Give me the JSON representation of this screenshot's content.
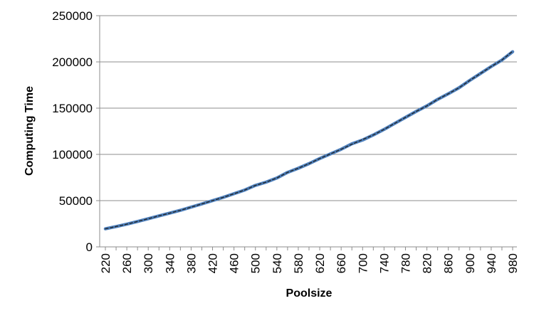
{
  "chart_data": {
    "type": "line",
    "title": "",
    "xlabel": "Poolsize",
    "ylabel": "Computing Time",
    "ylim": [
      0,
      250000
    ],
    "y_ticks": [
      0,
      50000,
      100000,
      150000,
      200000,
      250000
    ],
    "y_tick_labels": [
      "0",
      "50000",
      "100000",
      "150000",
      "200000",
      "250000"
    ],
    "x_tick_labels": [
      "220",
      "260",
      "300",
      "340",
      "380",
      "420",
      "460",
      "500",
      "540",
      "580",
      "620",
      "660",
      "700",
      "740",
      "780",
      "820",
      "860",
      "900",
      "940",
      "980"
    ],
    "grid": "horizontal",
    "legend": "none",
    "x": [
      220,
      240,
      260,
      280,
      300,
      320,
      340,
      360,
      380,
      400,
      420,
      440,
      460,
      480,
      500,
      520,
      540,
      560,
      580,
      600,
      620,
      640,
      660,
      680,
      700,
      720,
      740,
      760,
      780,
      800,
      820,
      840,
      860,
      880,
      900,
      920,
      940,
      960,
      980
    ],
    "series": [
      {
        "values": [
          19500,
          22000,
          24500,
          27500,
          30500,
          33500,
          36500,
          39500,
          43000,
          46500,
          50000,
          53500,
          57500,
          61500,
          66500,
          70000,
          74500,
          80500,
          85000,
          90000,
          95500,
          100500,
          105500,
          111500,
          115500,
          121000,
          127000,
          133500,
          140000,
          146500,
          152500,
          159500,
          165500,
          172000,
          180000,
          187500,
          195000,
          202000,
          211000
        ],
        "color": "#4f81bd",
        "style": "solid-thick"
      },
      {
        "values": [
          19500,
          22000,
          24500,
          27500,
          30500,
          33500,
          36500,
          39500,
          43000,
          46500,
          50000,
          53500,
          57500,
          61500,
          66500,
          70000,
          74500,
          80500,
          85000,
          90000,
          95500,
          100500,
          105500,
          111000,
          116000,
          121000,
          127000,
          133500,
          140000,
          146500,
          152500,
          159500,
          165500,
          172000,
          180000,
          187500,
          195000,
          202000,
          211500
        ],
        "color": "#1f1f1f",
        "style": "dashed"
      }
    ]
  }
}
